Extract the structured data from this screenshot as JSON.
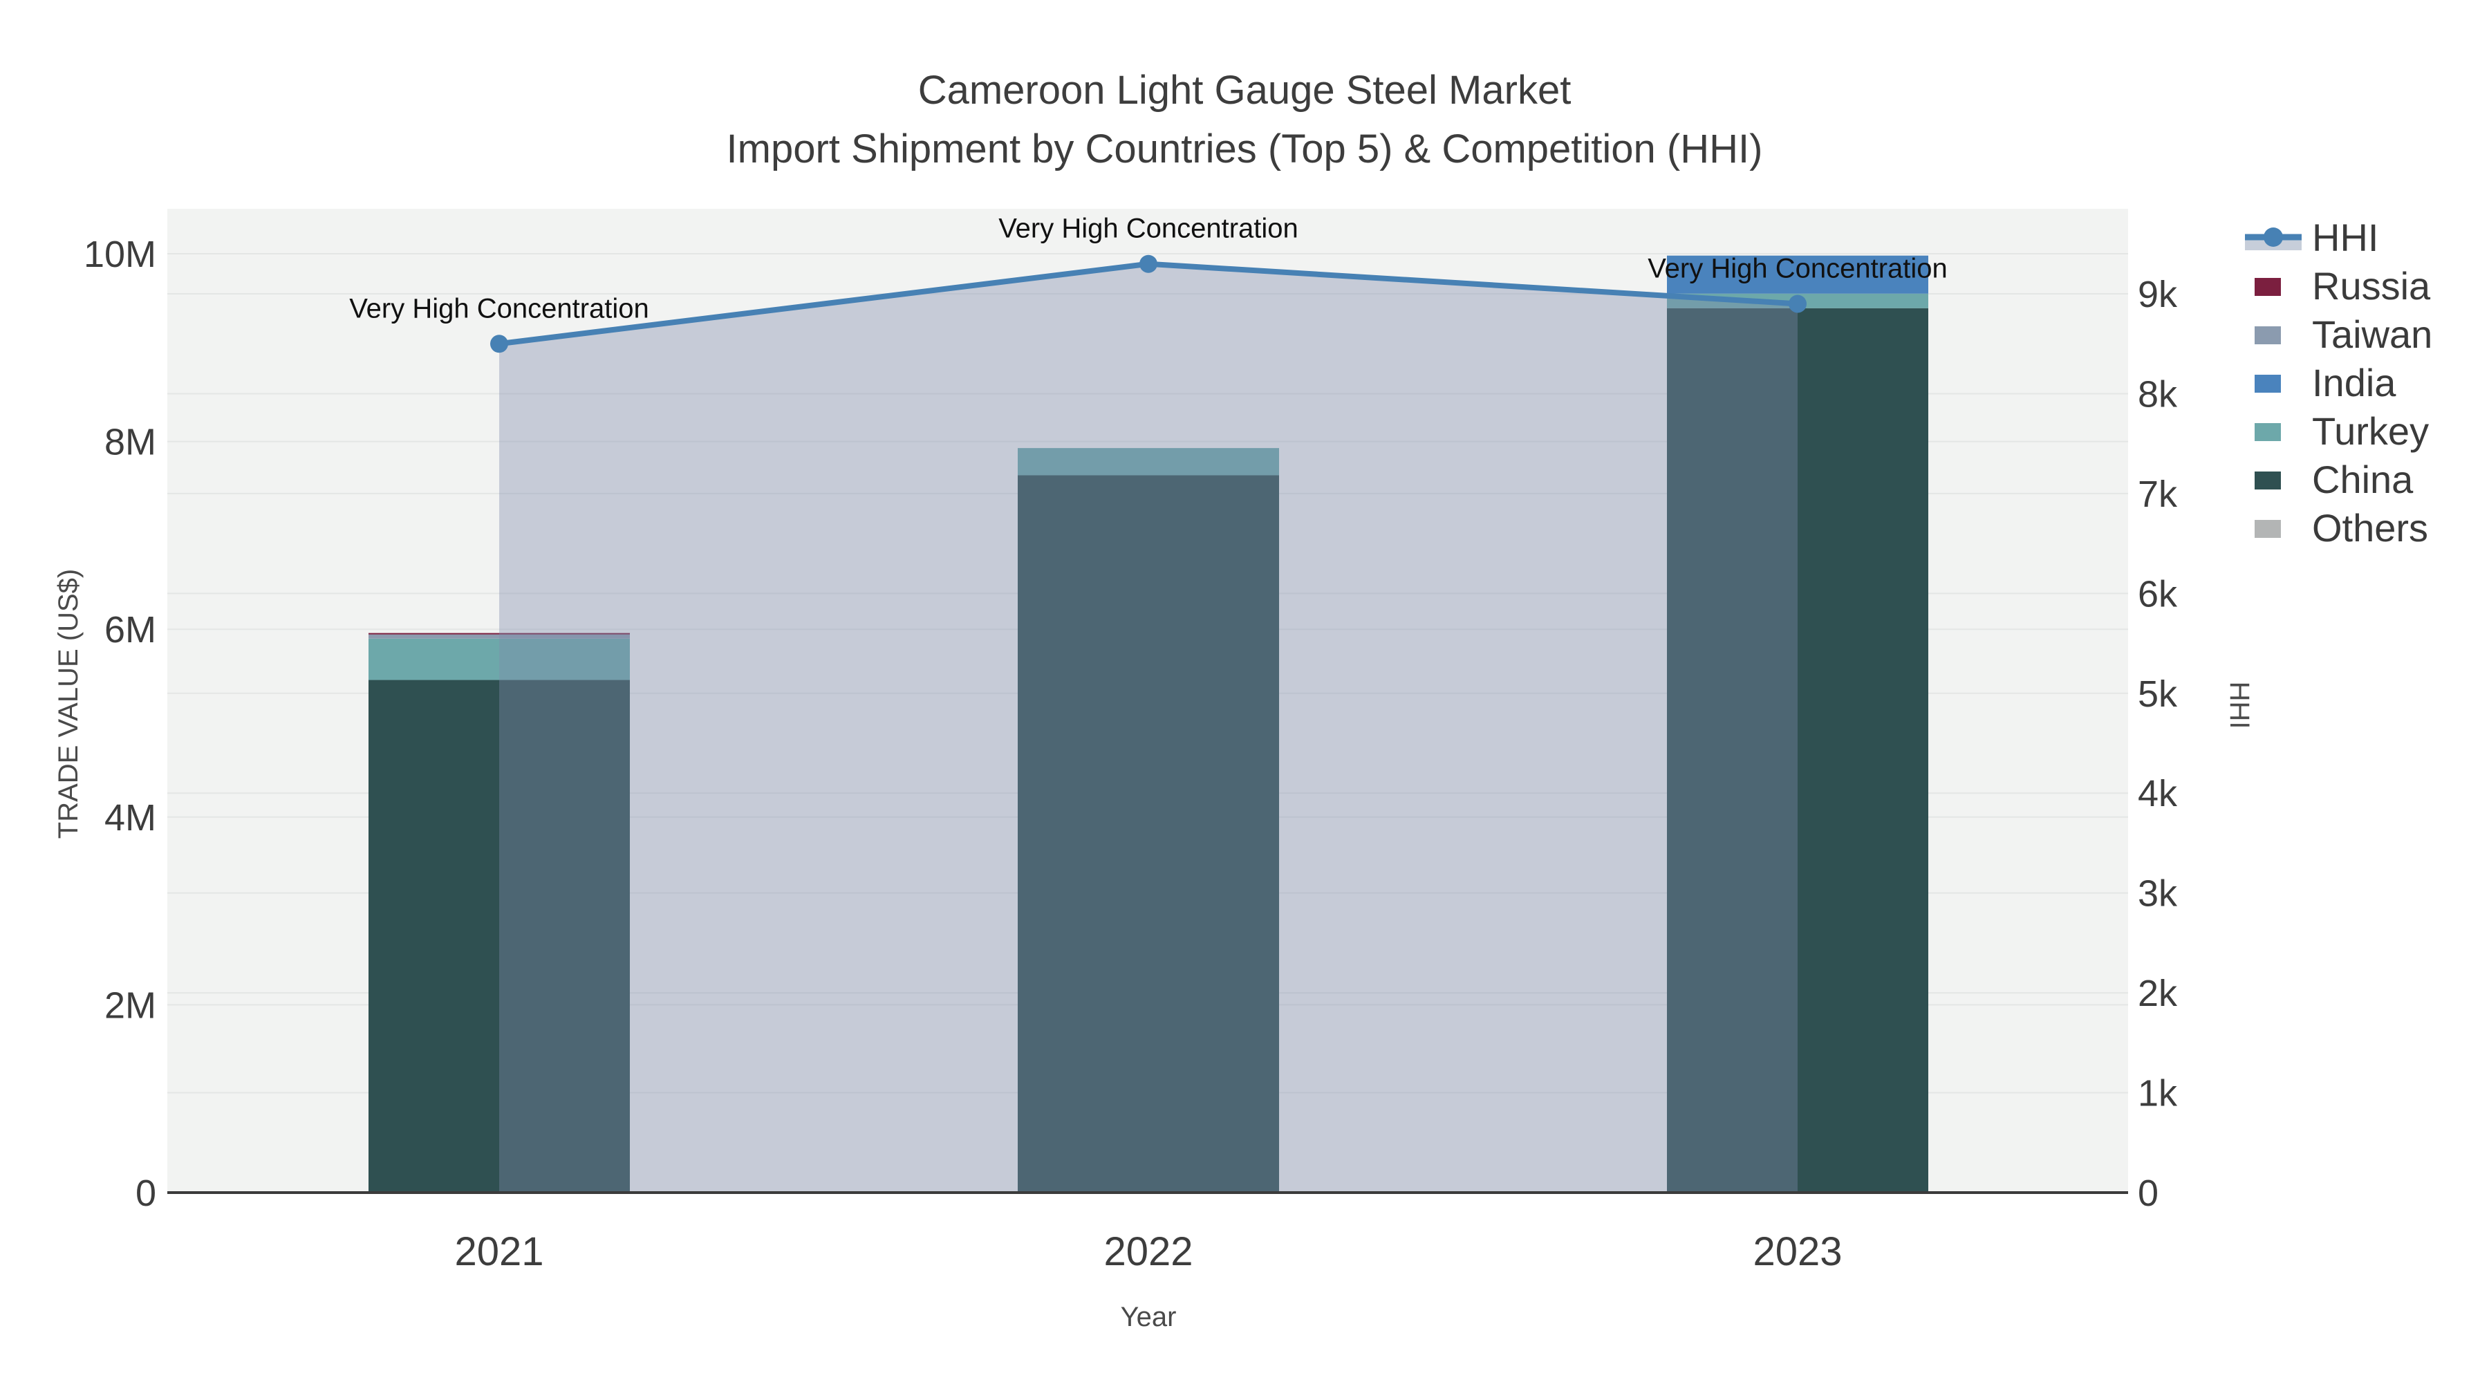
{
  "title": {
    "line1": "Cameroon Light Gauge Steel Market",
    "line2": "Import Shipment by Countries (Top 5) & Competition (HHI)"
  },
  "axes": {
    "x": {
      "title": "Year",
      "ticks": [
        "2021",
        "2022",
        "2023"
      ]
    },
    "y_left": {
      "title": "TRADE VALUE (US$)",
      "ticks": [
        {
          "v": 0,
          "label": "0"
        },
        {
          "v": 2000000,
          "label": "2M"
        },
        {
          "v": 4000000,
          "label": "4M"
        },
        {
          "v": 6000000,
          "label": "6M"
        },
        {
          "v": 8000000,
          "label": "8M"
        },
        {
          "v": 10000000,
          "label": "10M"
        }
      ]
    },
    "y_right": {
      "title": "HHI",
      "ticks": [
        {
          "v": 0,
          "label": "0"
        },
        {
          "v": 1000,
          "label": "1k"
        },
        {
          "v": 2000,
          "label": "2k"
        },
        {
          "v": 3000,
          "label": "3k"
        },
        {
          "v": 4000,
          "label": "4k"
        },
        {
          "v": 5000,
          "label": "5k"
        },
        {
          "v": 6000,
          "label": "6k"
        },
        {
          "v": 7000,
          "label": "7k"
        },
        {
          "v": 8000,
          "label": "8k"
        },
        {
          "v": 9000,
          "label": "9k"
        }
      ]
    }
  },
  "legend": {
    "items": [
      {
        "label": "HHI",
        "type": "line",
        "color": "#4781b4",
        "band": "#c7ceda"
      },
      {
        "label": "Russia",
        "type": "swatch",
        "color": "#7b1f3f"
      },
      {
        "label": "Taiwan",
        "type": "swatch",
        "color": "#8b9baf"
      },
      {
        "label": "India",
        "type": "swatch",
        "color": "#4a83bd"
      },
      {
        "label": "Turkey",
        "type": "swatch",
        "color": "#6da8aa"
      },
      {
        "label": "China",
        "type": "swatch",
        "color": "#2f5051"
      },
      {
        "label": "Others",
        "type": "swatch",
        "color": "#b3b5b5"
      }
    ]
  },
  "annotations": [
    {
      "text": "Very High Concentration",
      "year_index": 0
    },
    {
      "text": "Very High Concentration",
      "year_index": 1
    },
    {
      "text": "Very High Concentration",
      "year_index": 2
    }
  ],
  "chart_data": {
    "type": "bar+line",
    "stacked": true,
    "title": "Cameroon Light Gauge Steel Market — Import Shipment by Countries (Top 5) & Competition (HHI)",
    "categories": [
      "2021",
      "2022",
      "2023"
    ],
    "series": [
      {
        "name": "China",
        "type": "bar",
        "color": "#2f5051",
        "values": [
          5460000,
          7640000,
          9420000
        ]
      },
      {
        "name": "Turkey",
        "type": "bar",
        "color": "#6da8aa",
        "values": [
          440000,
          290000,
          155000
        ]
      },
      {
        "name": "India",
        "type": "bar",
        "color": "#4a83bd",
        "values": [
          0,
          0,
          405000
        ]
      },
      {
        "name": "Taiwan",
        "type": "bar",
        "color": "#8b9baf",
        "values": [
          45000,
          0,
          0
        ]
      },
      {
        "name": "Russia",
        "type": "bar",
        "color": "#7b1f3f",
        "values": [
          15000,
          0,
          0
        ]
      },
      {
        "name": "Others",
        "type": "bar",
        "color": "#b3b5b5",
        "values": [
          0,
          0,
          0
        ]
      }
    ],
    "hhi_line": {
      "name": "HHI",
      "type": "line",
      "color": "#4781b4",
      "area_fill": "rgba(125,140,170,0.38)",
      "values": [
        8500,
        9300,
        8900
      ]
    },
    "xlabel": "Year",
    "ylabel_left": "TRADE VALUE (US$)",
    "ylabel_right": "HHI",
    "ylim_left": [
      0,
      10480000
    ],
    "ylim_right": [
      0,
      9850
    ],
    "grid": true,
    "legend_position": "right",
    "plot_bg": "#f2f3f2",
    "grid_color": "#e4e6e5",
    "axis_line_color": "#3b3b3b",
    "annotation_text": "Very High Concentration"
  }
}
